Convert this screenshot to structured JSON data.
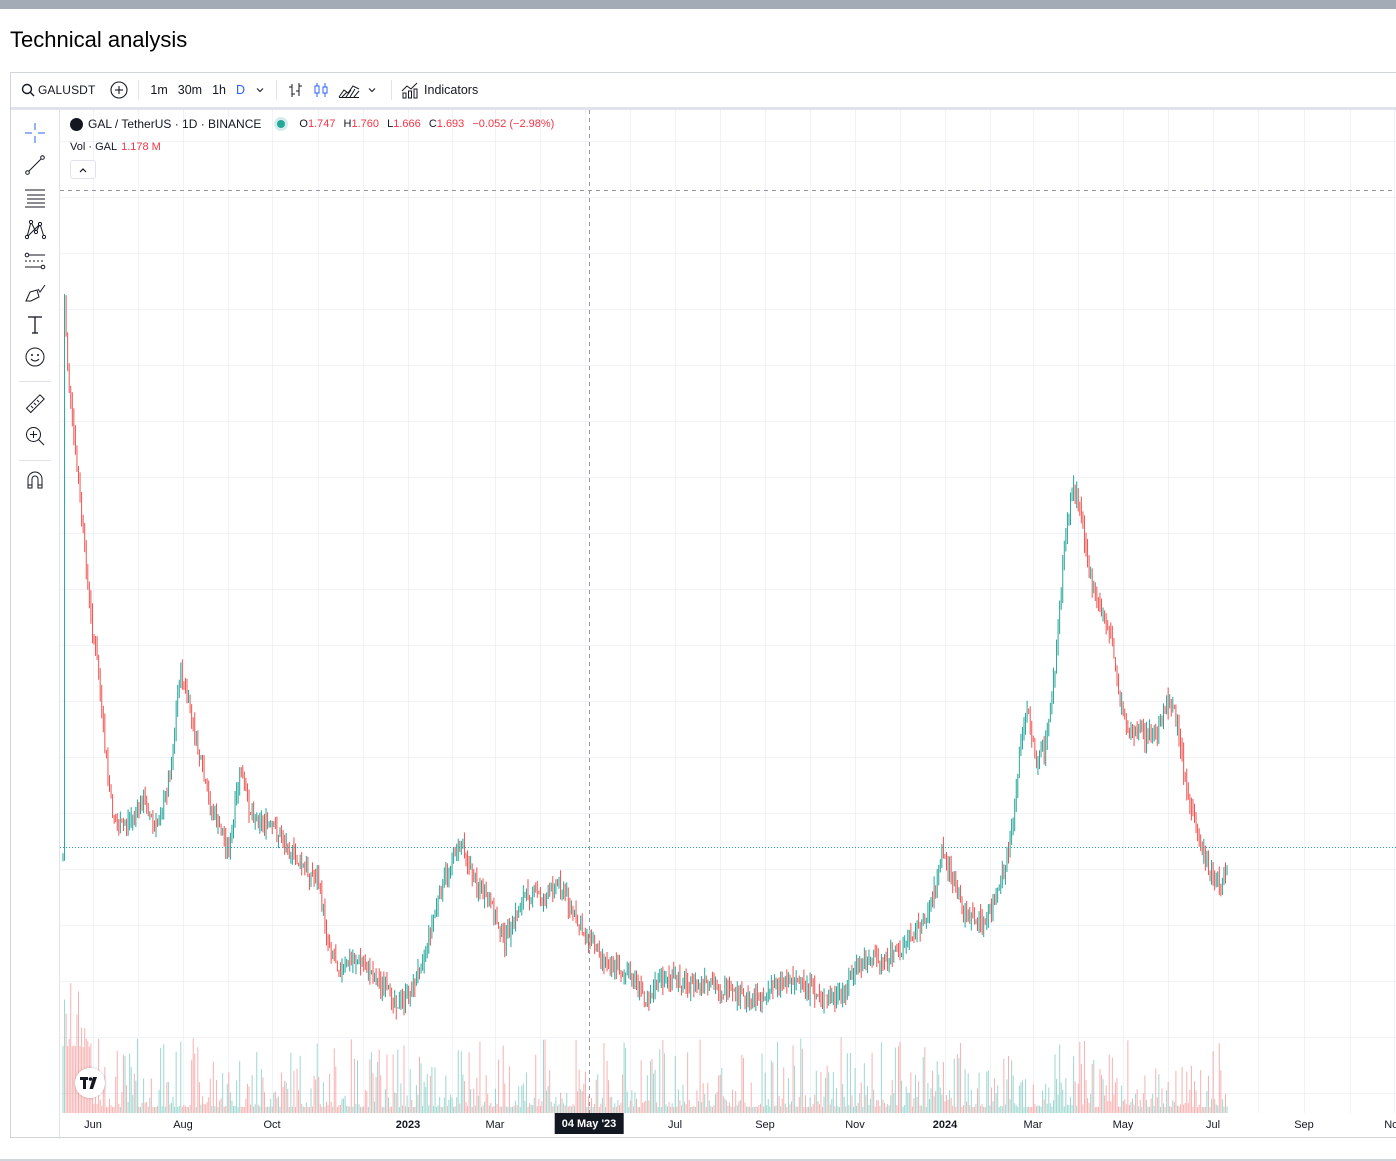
{
  "page": {
    "title": "Technical analysis"
  },
  "toolbar": {
    "symbol": "GALUSDT",
    "intervals": [
      "1m",
      "30m",
      "1h",
      "D"
    ],
    "active_interval": "D",
    "indicators_label": "Indicators"
  },
  "legend": {
    "symbol_desc": "GAL / TetherUS · 1D · BINANCE",
    "open_label": "O",
    "open": "1.747",
    "high_label": "H",
    "high": "1.760",
    "low_label": "L",
    "low": "1.666",
    "close_label": "C",
    "close": "1.693",
    "change": "−0.052 (−2.98%)",
    "volume_label": "Vol · GAL",
    "volume": "1.178 M"
  },
  "crosshair": {
    "date_label": "04 May '23"
  },
  "time_axis": {
    "ticks": [
      {
        "label": "Jun",
        "strong": false
      },
      {
        "label": "Aug",
        "strong": false
      },
      {
        "label": "Oct",
        "strong": false
      },
      {
        "label": "2023",
        "strong": true
      },
      {
        "label": "Mar",
        "strong": false
      },
      {
        "label": "Jul",
        "strong": false
      },
      {
        "label": "Sep",
        "strong": false
      },
      {
        "label": "Nov",
        "strong": false
      },
      {
        "label": "2024",
        "strong": true
      },
      {
        "label": "Mar",
        "strong": false
      },
      {
        "label": "May",
        "strong": false
      },
      {
        "label": "Jul",
        "strong": false
      },
      {
        "label": "Sep",
        "strong": false
      },
      {
        "label": "Nov",
        "strong": false
      }
    ]
  },
  "colors": {
    "up": "#26a69a",
    "down": "#ef5350",
    "accent": "#2962ff",
    "grid": "#f0f3fa"
  },
  "icons": [
    "search-icon",
    "add-compare-icon",
    "chevron-down-icon",
    "bar-chart-icon",
    "candles-icon",
    "area-chart-icon",
    "indicators-icon",
    "crosshair-icon",
    "trend-line-icon",
    "fib-icon",
    "pattern-icon",
    "prediction-icon",
    "brush-icon",
    "text-icon",
    "emoji-icon",
    "ruler-icon",
    "zoom-in-icon",
    "magnet-icon",
    "tradingview-logo-icon"
  ]
}
